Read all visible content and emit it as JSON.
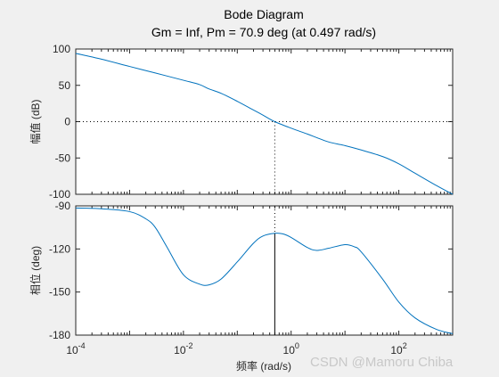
{
  "chart_data": {
    "type": "line",
    "title": "Bode Diagram",
    "subtitle": "Gm = Inf,  Pm = 70.9 deg (at 0.497 rad/s)",
    "xlabel": "频率  (rad/s)",
    "x_scale": "log",
    "xlim": [
      0.0001,
      1000
    ],
    "x_ticks": [
      {
        "value": 0.0001,
        "base": "10",
        "exp": "-4"
      },
      {
        "value": 0.01,
        "base": "10",
        "exp": "-2"
      },
      {
        "value": 1,
        "base": "10",
        "exp": "0"
      },
      {
        "value": 100,
        "base": "10",
        "exp": "2"
      }
    ],
    "grid": false,
    "line_color": "#0072bd",
    "panels": [
      {
        "id": "magnitude",
        "ylabel": "幅值 (dB)",
        "ylim": [
          -100,
          100
        ],
        "y_ticks": [
          100,
          50,
          0,
          -50,
          -100
        ],
        "reference_line": 0,
        "series": [
          {
            "x": [
              0.0001,
              0.0003,
              0.001,
              0.003,
              0.01,
              0.02,
              0.03,
              0.05,
              0.1,
              0.2,
              0.3,
              0.497,
              1,
              2,
              3,
              5,
              10,
              20,
              50,
              100,
              200,
              500,
              1000
            ],
            "y": [
              94,
              86,
              76,
              67,
              57,
              51,
              45,
              39,
              28,
              16,
              9,
              0,
              -9,
              -17,
              -22,
              -28,
              -33,
              -39,
              -48,
              -58,
              -71,
              -88,
              -100
            ]
          }
        ]
      },
      {
        "id": "phase",
        "ylabel": "相位 (deg)",
        "ylim": [
          -180,
          -90
        ],
        "y_ticks": [
          -90,
          -120,
          -150,
          -180
        ],
        "series": [
          {
            "x": [
              0.0001,
              0.0003,
              0.001,
              0.002,
              0.003,
              0.005,
              0.01,
              0.02,
              0.03,
              0.05,
              0.1,
              0.2,
              0.3,
              0.497,
              0.7,
              1,
              2,
              3,
              5,
              10,
              15,
              20,
              50,
              100,
              200,
              500,
              1000
            ],
            "y": [
              -91.5,
              -92,
              -94,
              -99,
              -105,
              -119,
              -138,
              -144.5,
              -145,
              -141,
              -129,
              -116,
              -111,
              -109.1,
              -109.5,
              -112,
              -119,
              -121,
              -119.5,
              -117,
              -118.5,
              -122,
              -141,
              -157,
              -168,
              -176,
              -179
            ]
          }
        ],
        "marker_x": 0.497
      }
    ]
  },
  "watermark": "CSDN @Mamoru Chiba"
}
